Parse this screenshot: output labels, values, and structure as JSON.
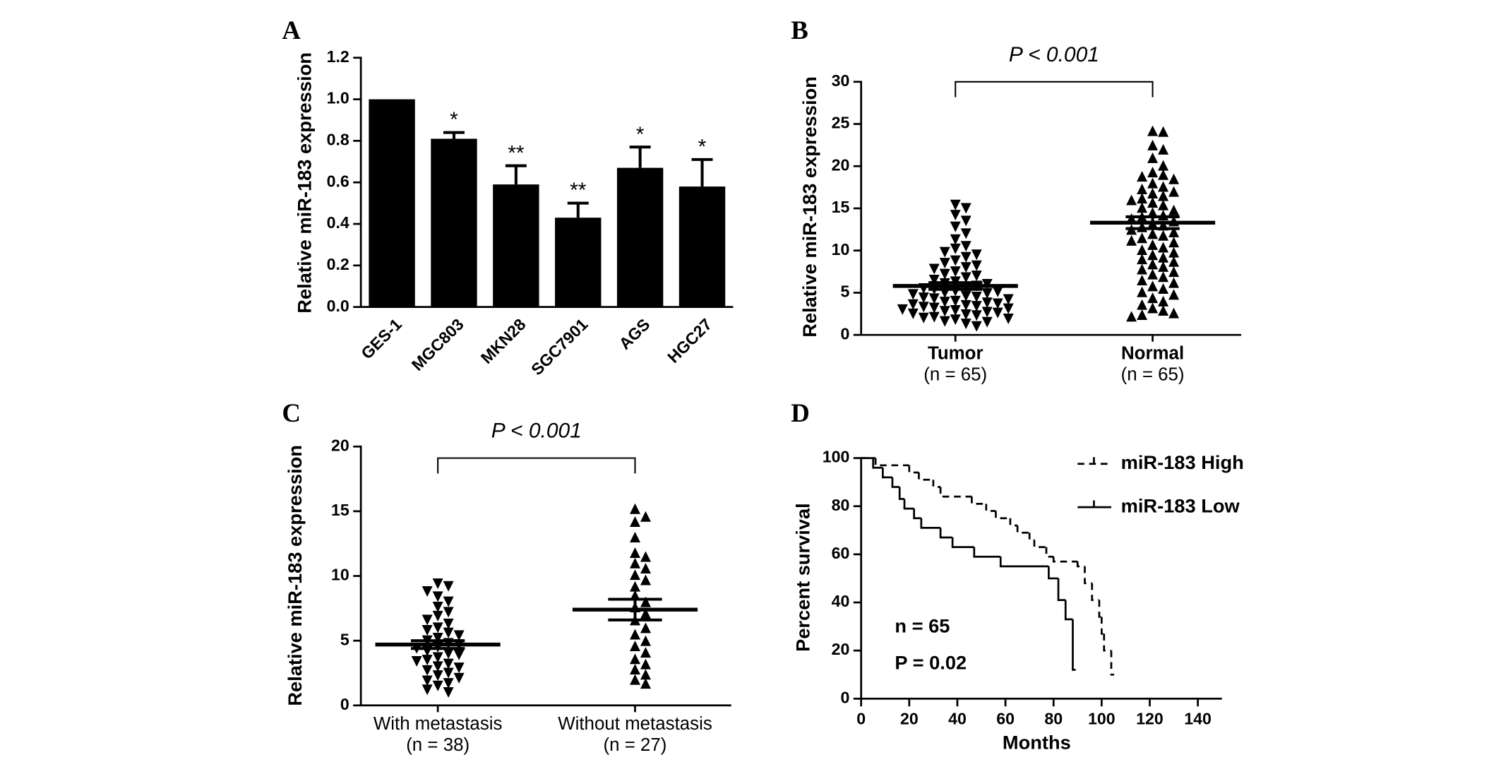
{
  "chart_data": [
    {
      "type": "bar",
      "panel": "A",
      "ylabel": "Relative miR-183 expression",
      "categories": [
        "GES-1",
        "MGC803",
        "MKN28",
        "SGC7901",
        "AGS",
        "HGC27"
      ],
      "values": [
        1.0,
        0.81,
        0.59,
        0.43,
        0.67,
        0.58
      ],
      "errors": [
        0,
        0.03,
        0.09,
        0.07,
        0.1,
        0.13
      ],
      "annotations": [
        null,
        "*",
        "**",
        "**",
        "*",
        "*"
      ],
      "color": "#000000",
      "ylim": [
        0,
        1.2
      ],
      "yticks": [
        {
          "value": 0,
          "label": "0.0"
        },
        {
          "value": 0.2,
          "label": "0.2"
        },
        {
          "value": 0.4,
          "label": "0.4"
        },
        {
          "value": 0.6,
          "label": "0.6"
        },
        {
          "value": 0.8,
          "label": "0.8"
        },
        {
          "value": 1.0,
          "label": "1.0"
        },
        {
          "value": 1.2,
          "label": "1.2"
        }
      ]
    },
    {
      "type": "scatter",
      "panel": "B",
      "ylabel": "Relative miR-183 expression",
      "annotation": "P < 0.001",
      "categories": [
        "Tumor",
        "Normal"
      ],
      "sublabels": [
        "(n = 65)",
        "(n = 65)"
      ],
      "series": [
        {
          "marker": "triangle-down",
          "color": "#000000",
          "mean": 5.8,
          "sem": 0.4,
          "values": [
            15.4,
            15.0,
            14.2,
            13.5,
            12.8,
            12.0,
            11.3,
            10.5,
            10.2,
            9.8,
            9.5,
            9.2,
            8.8,
            8.5,
            8.2,
            8.0,
            7.8,
            7.5,
            7.2,
            7.0,
            6.8,
            6.5,
            6.3,
            6.1,
            6.0,
            5.8,
            5.7,
            5.5,
            5.4,
            5.2,
            5.1,
            5.0,
            4.9,
            4.8,
            4.6,
            4.5,
            4.4,
            4.3,
            4.2,
            4.0,
            3.9,
            3.8,
            3.7,
            3.6,
            3.5,
            3.4,
            3.3,
            3.2,
            3.1,
            3.0,
            2.9,
            2.8,
            2.7,
            2.6,
            2.5,
            2.4,
            2.3,
            2.1,
            2.0,
            1.9,
            1.8,
            1.6,
            1.5,
            1.3,
            1.0
          ]
        },
        {
          "marker": "triangle-up",
          "color": "#000000",
          "mean": 13.3,
          "sem": 0.7,
          "values": [
            24.2,
            24.1,
            22.5,
            22.0,
            21.0,
            20.1,
            19.3,
            19.0,
            18.8,
            18.5,
            18.0,
            17.6,
            17.3,
            17.0,
            16.8,
            16.5,
            16.2,
            16.0,
            15.7,
            15.4,
            15.1,
            14.8,
            14.5,
            14.2,
            14.0,
            13.8,
            13.5,
            13.2,
            13.0,
            12.8,
            12.5,
            12.2,
            12.0,
            11.8,
            11.5,
            11.2,
            11.0,
            10.7,
            10.4,
            10.1,
            9.8,
            9.5,
            9.2,
            9.0,
            8.7,
            8.4,
            8.1,
            7.8,
            7.5,
            7.2,
            6.9,
            6.5,
            6.2,
            5.8,
            5.5,
            5.1,
            4.8,
            4.4,
            4.0,
            3.6,
            3.2,
            2.9,
            2.6,
            2.4,
            2.2
          ]
        }
      ],
      "ylim": [
        0,
        30
      ],
      "yticks": [
        0,
        5,
        10,
        15,
        20,
        25,
        30
      ]
    },
    {
      "type": "scatter",
      "panel": "C",
      "ylabel": "Relative miR-183 expression",
      "annotation": "P < 0.001",
      "categories": [
        "With metastasis",
        "Without metastasis"
      ],
      "sublabels": [
        "(n = 38)",
        "(n = 27)"
      ],
      "series": [
        {
          "marker": "triangle-down",
          "color": "#000000",
          "mean": 4.7,
          "sem": 0.3,
          "values": [
            9.4,
            9.2,
            8.8,
            8.4,
            8.0,
            7.6,
            7.2,
            6.9,
            6.6,
            6.3,
            6.0,
            5.8,
            5.6,
            5.4,
            5.2,
            5.0,
            4.8,
            4.7,
            4.5,
            4.4,
            4.2,
            4.0,
            3.9,
            3.7,
            3.5,
            3.4,
            3.2,
            3.0,
            2.9,
            2.7,
            2.5,
            2.3,
            2.1,
            1.9,
            1.7,
            1.5,
            1.2,
            1.0
          ]
        },
        {
          "marker": "triangle-up",
          "color": "#000000",
          "mean": 7.4,
          "sem": 0.8,
          "values": [
            15.2,
            14.6,
            14.2,
            13.0,
            11.8,
            11.5,
            11.0,
            10.6,
            10.1,
            9.7,
            9.2,
            8.5,
            8.0,
            7.6,
            7.1,
            6.6,
            6.0,
            5.5,
            5.0,
            4.6,
            4.1,
            3.6,
            3.2,
            2.8,
            2.4,
            2.0,
            1.7
          ]
        }
      ],
      "ylim": [
        0,
        20
      ],
      "yticks": [
        0,
        5,
        10,
        15,
        20
      ]
    },
    {
      "type": "survival",
      "panel": "D",
      "xlabel": "Months",
      "ylabel": "Percent survival",
      "annotations": [
        "n = 65",
        "P = 0.02"
      ],
      "legend": "top-right",
      "series": [
        {
          "name": "miR-183 High",
          "color": "#000000",
          "line_style": "dashed",
          "x": [
            0,
            6,
            20,
            24,
            30,
            33,
            46,
            52,
            56,
            62,
            65,
            70,
            72,
            77,
            80,
            90,
            93,
            96,
            99,
            100,
            101,
            104
          ],
          "values": [
            100,
            97,
            94,
            91,
            88,
            84,
            81,
            78,
            75,
            72,
            69,
            66,
            63,
            59,
            57,
            55,
            48,
            41,
            34,
            27,
            20,
            10
          ]
        },
        {
          "name": "miR-183 Low",
          "color": "#000000",
          "line_style": "solid",
          "x": [
            0,
            5,
            9,
            13,
            16,
            18,
            22,
            25,
            33,
            38,
            47,
            58,
            78,
            82,
            85,
            88
          ],
          "values": [
            100,
            96,
            92,
            88,
            83,
            79,
            75,
            71,
            67,
            63,
            59,
            55,
            50,
            41,
            33,
            12
          ]
        }
      ],
      "xlim": [
        0,
        150
      ],
      "xticks": [
        0,
        20,
        40,
        60,
        80,
        100,
        120,
        140
      ],
      "ylim": [
        0,
        100
      ],
      "yticks": [
        0,
        20,
        40,
        60,
        80,
        100
      ]
    }
  ]
}
